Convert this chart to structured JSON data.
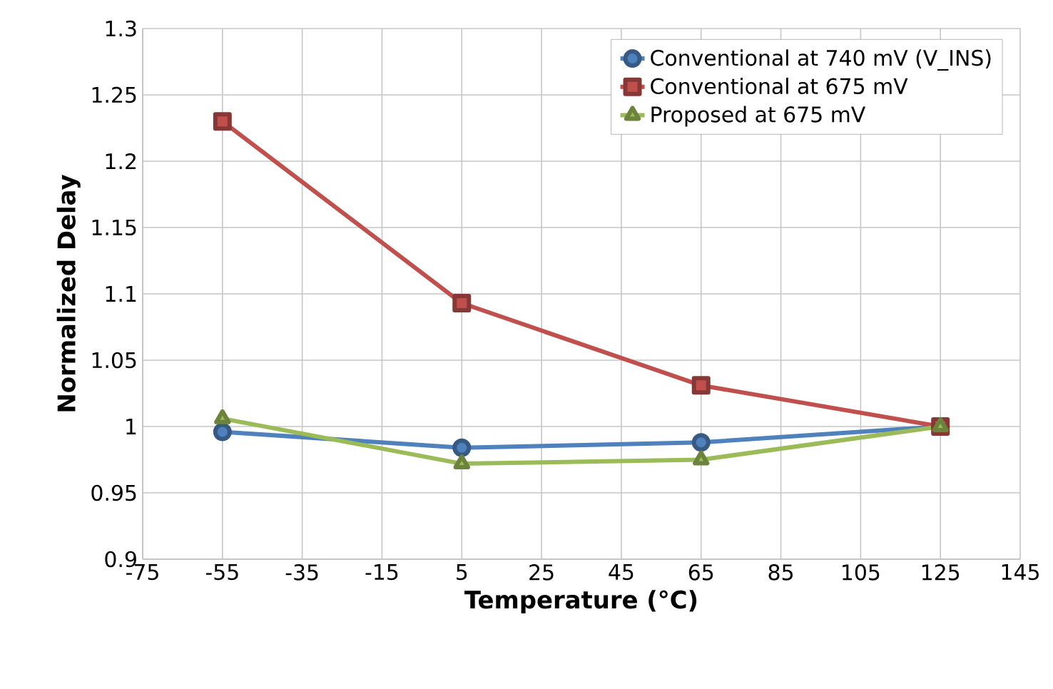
{
  "chart_data": {
    "type": "line",
    "xlabel": "Temperature (°C)",
    "ylabel": "Normalized Delay",
    "x": [
      -55,
      5,
      65,
      125
    ],
    "series": [
      {
        "name": "Conventional at 740 mV (V_INS)",
        "color": "#4f81bd",
        "marker": "circle",
        "values": [
          0.996,
          0.984,
          0.988,
          1.0
        ]
      },
      {
        "name": "Conventional at 675 mV",
        "color": "#c0504d",
        "marker": "square",
        "values": [
          1.23,
          1.093,
          1.031,
          1.0
        ]
      },
      {
        "name": "Proposed at 675 mV",
        "color": "#9bbb59",
        "marker": "triangle",
        "values": [
          1.006,
          0.972,
          0.975,
          1.0
        ]
      }
    ],
    "xlim": [
      -75,
      145
    ],
    "xticks": [
      -75,
      -55,
      -35,
      -15,
      5,
      25,
      45,
      65,
      85,
      105,
      125,
      145
    ],
    "ylim": [
      0.9,
      1.3
    ],
    "yticks": [
      0.9,
      0.95,
      1,
      1.05,
      1.1,
      1.15,
      1.2,
      1.25,
      1.3
    ],
    "grid": true,
    "legend": "top right",
    "line_style": "solid"
  }
}
